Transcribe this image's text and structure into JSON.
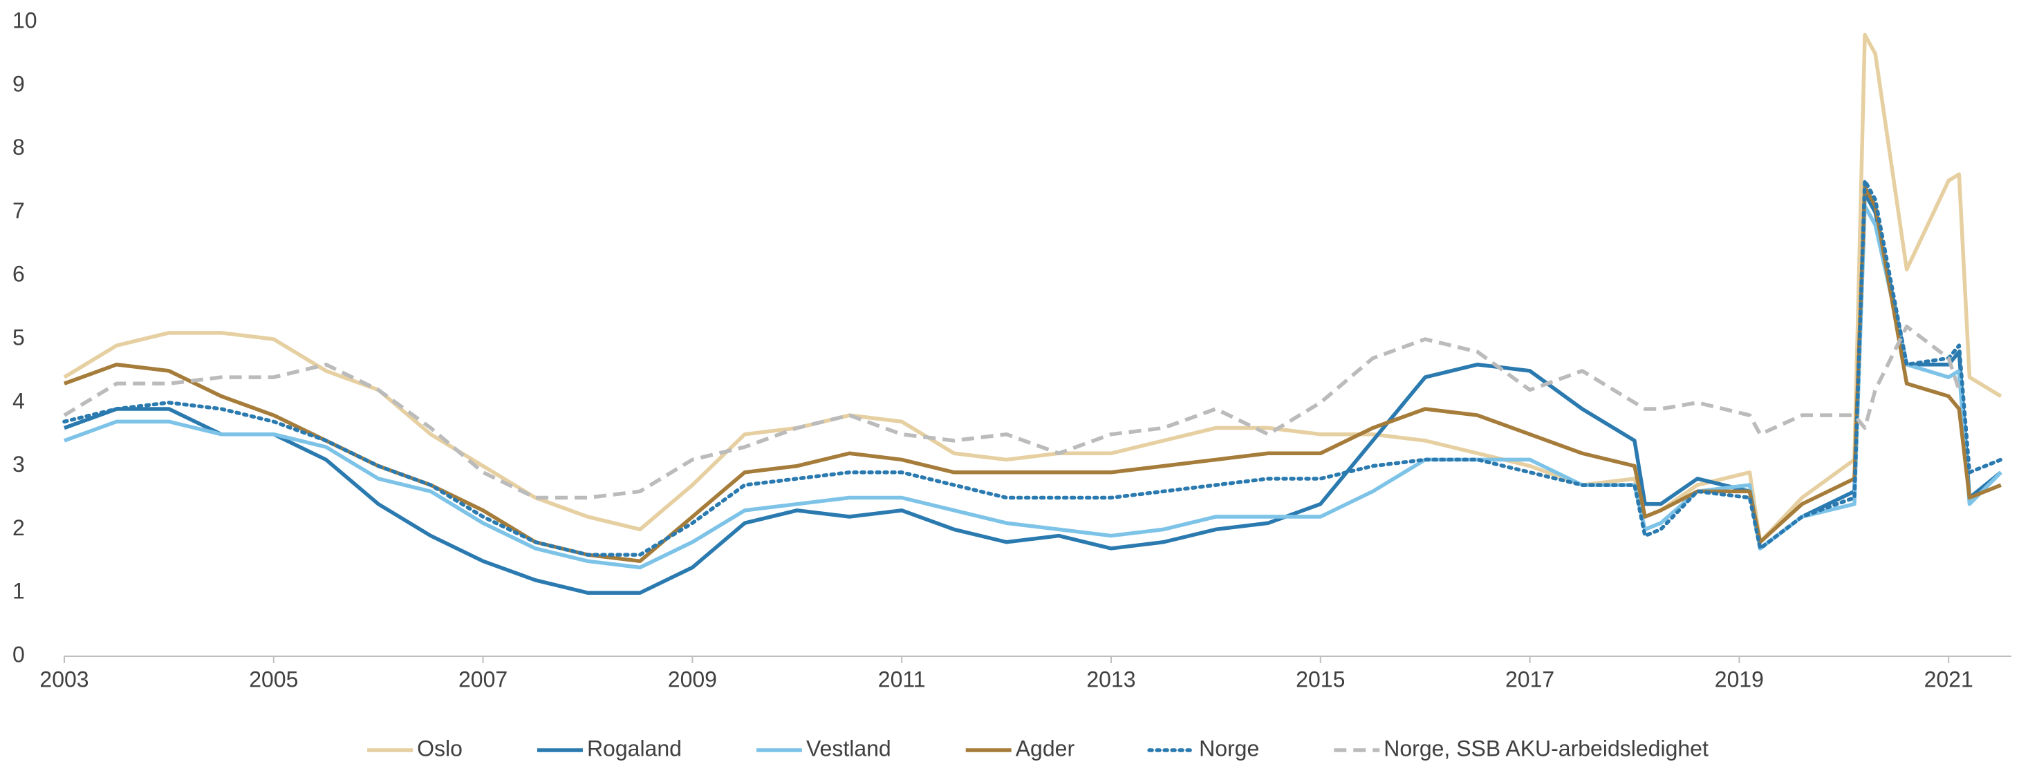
{
  "chart_data": {
    "type": "line",
    "x": [
      2003,
      2003.5,
      2004,
      2004.5,
      2005,
      2005.5,
      2006,
      2006.5,
      2007,
      2007.5,
      2008,
      2008.5,
      2009,
      2009.5,
      2010,
      2010.5,
      2011,
      2011.5,
      2012,
      2012.5,
      2013,
      2013.5,
      2014,
      2014.5,
      2015,
      2015.5,
      2016,
      2016.5,
      2017,
      2017.5,
      2018,
      2018.1,
      2018.25,
      2018.6,
      2019.1,
      2019.2,
      2019.6,
      2020.1,
      2020.2,
      2020.3,
      2020.6,
      2021,
      2021.1,
      2021.2,
      2021.5
    ],
    "series": [
      {
        "name": "Oslo",
        "color": "#e6cfa0",
        "dash": "solid",
        "values": [
          4.4,
          4.9,
          5.1,
          5.1,
          5.0,
          4.5,
          4.2,
          3.5,
          3.0,
          2.5,
          2.2,
          2.0,
          2.7,
          3.5,
          3.6,
          3.8,
          3.7,
          3.2,
          3.1,
          3.2,
          3.2,
          3.4,
          3.6,
          3.6,
          3.5,
          3.5,
          3.4,
          3.2,
          3.0,
          2.7,
          2.8,
          2.2,
          2.3,
          2.7,
          2.9,
          1.8,
          2.5,
          3.1,
          9.8,
          9.5,
          6.1,
          7.5,
          7.6,
          4.4,
          4.1
        ]
      },
      {
        "name": "Rogaland",
        "color": "#2a7ab0",
        "dash": "solid",
        "values": [
          3.6,
          3.9,
          3.9,
          3.5,
          3.5,
          3.1,
          2.4,
          1.9,
          1.5,
          1.2,
          1.0,
          1.0,
          1.4,
          2.1,
          2.3,
          2.2,
          2.3,
          2.0,
          1.8,
          1.9,
          1.7,
          1.8,
          2.0,
          2.1,
          2.4,
          3.4,
          4.4,
          4.6,
          4.5,
          3.9,
          3.4,
          2.4,
          2.4,
          2.8,
          2.6,
          1.7,
          2.2,
          2.6,
          7.3,
          7.0,
          4.6,
          4.6,
          4.8,
          2.5,
          2.9
        ]
      },
      {
        "name": "Vestland",
        "color": "#7dc3e8",
        "dash": "solid",
        "values": [
          3.4,
          3.7,
          3.7,
          3.5,
          3.5,
          3.3,
          2.8,
          2.6,
          2.1,
          1.7,
          1.5,
          1.4,
          1.8,
          2.3,
          2.4,
          2.5,
          2.5,
          2.3,
          2.1,
          2.0,
          1.9,
          2.0,
          2.2,
          2.2,
          2.2,
          2.6,
          3.1,
          3.1,
          3.1,
          2.7,
          2.7,
          2.0,
          2.1,
          2.6,
          2.7,
          1.7,
          2.2,
          2.4,
          7.1,
          6.8,
          4.6,
          4.4,
          4.5,
          2.4,
          2.9
        ]
      },
      {
        "name": "Agder",
        "color": "#a57c3a",
        "dash": "solid",
        "values": [
          4.3,
          4.6,
          4.5,
          4.1,
          3.8,
          3.4,
          3.0,
          2.7,
          2.3,
          1.8,
          1.6,
          1.5,
          2.2,
          2.9,
          3.0,
          3.2,
          3.1,
          2.9,
          2.9,
          2.9,
          2.9,
          3.0,
          3.1,
          3.2,
          3.2,
          3.6,
          3.9,
          3.8,
          3.5,
          3.2,
          3.0,
          2.2,
          2.3,
          2.6,
          2.6,
          1.8,
          2.4,
          2.8,
          7.4,
          7.1,
          4.3,
          4.1,
          3.9,
          2.5,
          2.7
        ]
      },
      {
        "name": "Norge",
        "color": "#2a7ab0",
        "dash": "dotted",
        "values": [
          3.7,
          3.9,
          4.0,
          3.9,
          3.7,
          3.4,
          3.0,
          2.7,
          2.2,
          1.8,
          1.6,
          1.6,
          2.1,
          2.7,
          2.8,
          2.9,
          2.9,
          2.7,
          2.5,
          2.5,
          2.5,
          2.6,
          2.7,
          2.8,
          2.8,
          3.0,
          3.1,
          3.1,
          2.9,
          2.7,
          2.7,
          1.9,
          2.0,
          2.6,
          2.5,
          1.7,
          2.2,
          2.5,
          7.5,
          7.2,
          4.6,
          4.7,
          4.9,
          2.9,
          3.1
        ]
      },
      {
        "name": "Norge, SSB AKU-arbeidsledighet",
        "color": "#bbbbbb",
        "dash": "dashed",
        "values": [
          3.8,
          4.3,
          4.3,
          4.4,
          4.4,
          4.6,
          4.2,
          3.6,
          2.9,
          2.5,
          2.5,
          2.6,
          3.1,
          3.3,
          3.6,
          3.8,
          3.5,
          3.4,
          3.5,
          3.2,
          3.5,
          3.6,
          3.9,
          3.5,
          4.0,
          4.7,
          5.0,
          4.8,
          4.2,
          4.5,
          4.0,
          3.9,
          3.9,
          4.0,
          3.8,
          3.5,
          3.8,
          3.8,
          3.6,
          4.2,
          5.2,
          4.7,
          4.2,
          null,
          null
        ]
      }
    ],
    "xlim": [
      2003,
      2021.6
    ],
    "xticks": [
      2003,
      2005,
      2007,
      2009,
      2011,
      2013,
      2015,
      2017,
      2019,
      2021
    ],
    "ylim": [
      0,
      10
    ],
    "yticks": [
      0,
      1,
      2,
      3,
      4,
      5,
      6,
      7,
      8,
      9,
      10
    ],
    "legend": "bottom"
  }
}
